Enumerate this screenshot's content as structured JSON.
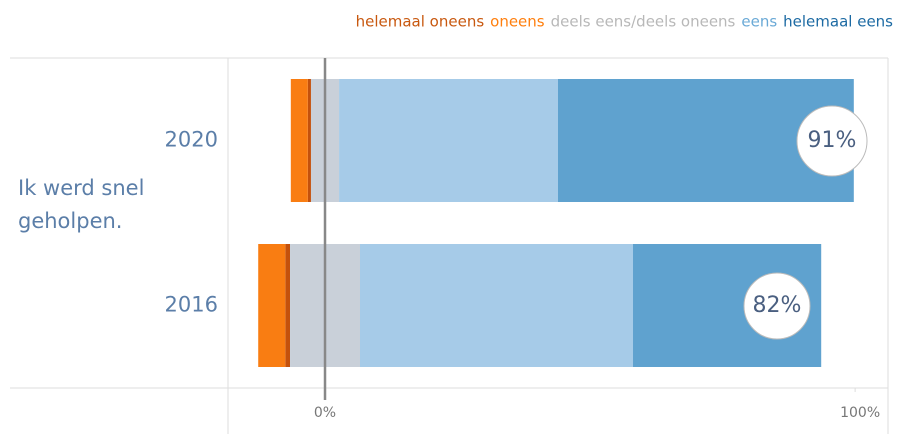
{
  "chart_data": {
    "type": "diverging_bar",
    "group_label": "Ik werd snel geholpen.",
    "categories": [
      "2020",
      "2016"
    ],
    "series": [
      {
        "name": "helemaal oneens",
        "color": "#c4510c",
        "side": "negative",
        "values": [
          0.6,
          0.9
        ]
      },
      {
        "name": "oneens",
        "color": "#f97d12",
        "side": "negative",
        "values": [
          3.2,
          5.1
        ]
      },
      {
        "name": "deels eens/deels oneens",
        "color": "#c9d0d9",
        "side": "neutral",
        "values": [
          5.3,
          13.2
        ]
      },
      {
        "name": "eens",
        "color": "#a6cbe8",
        "side": "positive",
        "values": [
          41.3,
          51.5
        ]
      },
      {
        "name": "helemaal eens",
        "color": "#5fa2cf",
        "side": "positive",
        "values": [
          55.8,
          35.5
        ]
      }
    ],
    "legend_colors": [
      "#c8580f",
      "#ff7f0e",
      "#b8b8b8",
      "#6aa9d6",
      "#1c6aa3"
    ],
    "summary_labels": [
      "91%",
      "82%"
    ],
    "xlim": [
      -18.3,
      106.2
    ],
    "xticks": [
      {
        "value": 0,
        "label": "0%"
      },
      {
        "value": 100,
        "label": "100%"
      }
    ],
    "legend": "top-right"
  }
}
